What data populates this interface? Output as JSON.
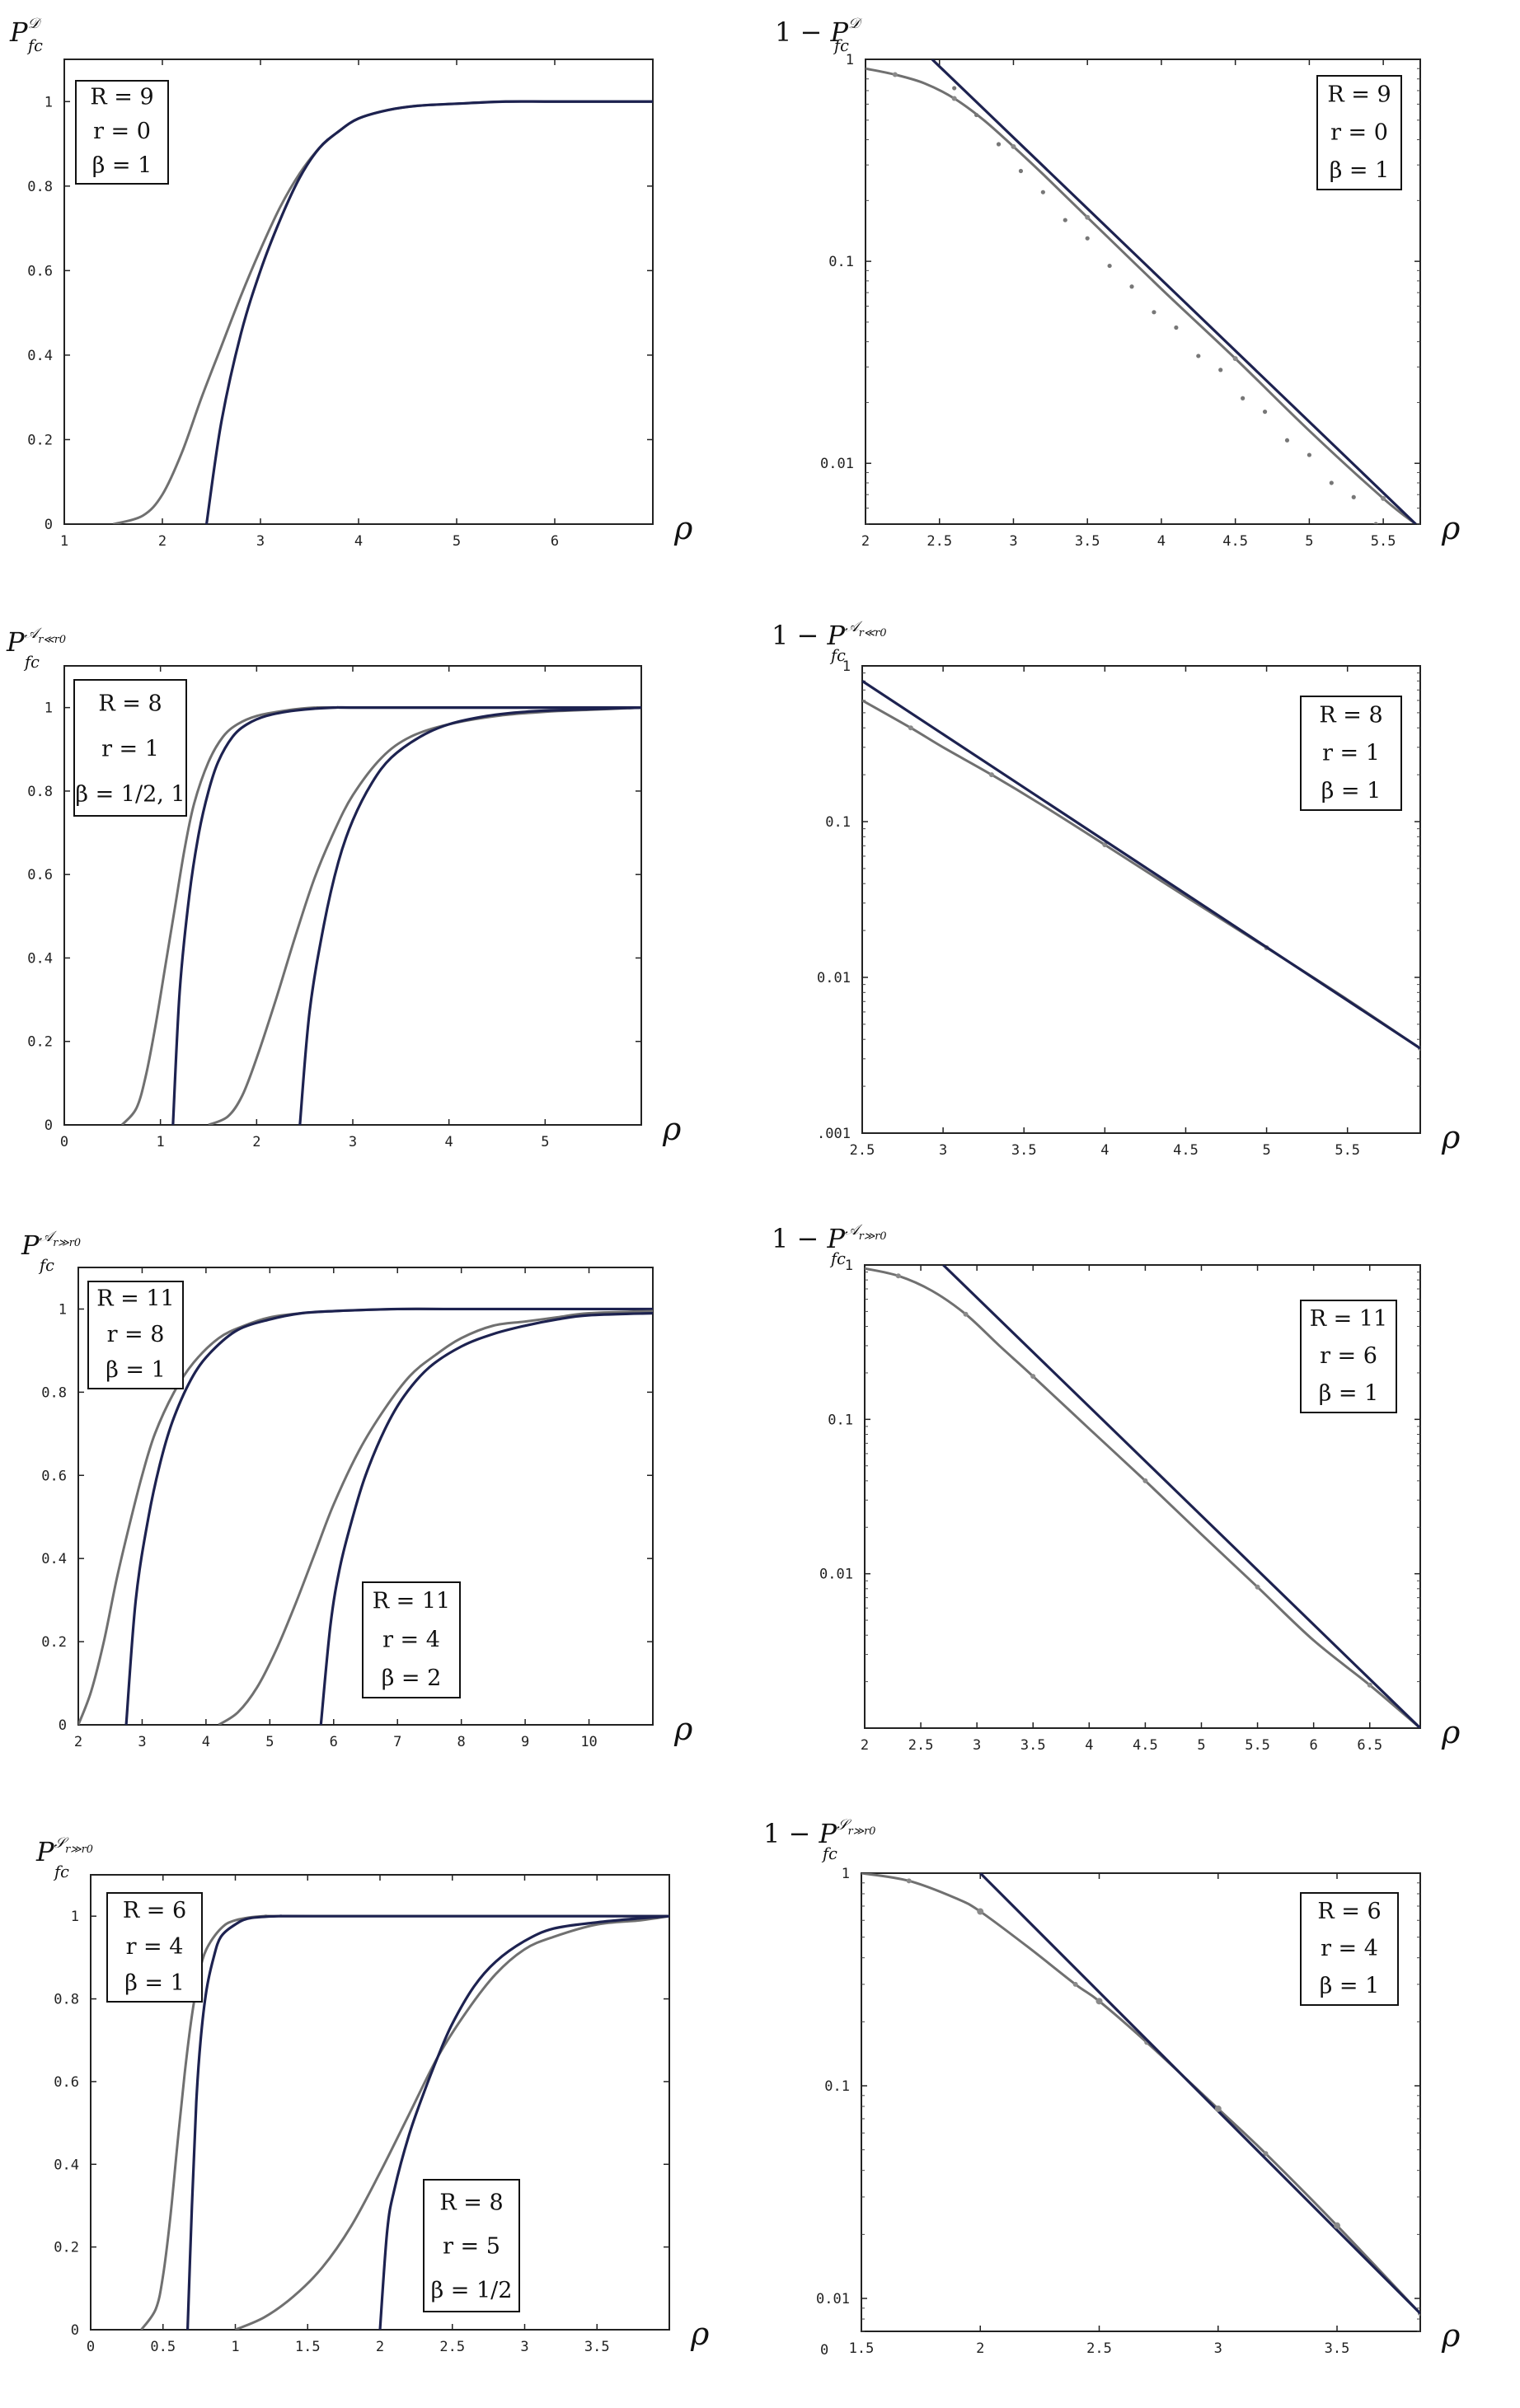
{
  "chart_data": [
    {
      "type": "line",
      "ylabel": "P_fc^D",
      "xlabel": "ρ",
      "xlim": [
        1,
        7
      ],
      "ylim": [
        0,
        1.1
      ],
      "xticks": [
        1,
        2,
        3,
        4,
        5,
        6
      ],
      "yticks": [
        0,
        0.2,
        0.4,
        0.6,
        0.8,
        1
      ],
      "xtick_labels": [
        "1",
        "2",
        "3",
        "4",
        "5",
        "6"
      ],
      "ytick_labels": [
        "0",
        "0.2",
        "0.4",
        "0.6",
        "0.8",
        "1"
      ],
      "annotations": [
        {
          "lines": [
            "R = 9",
            "r = 0",
            "β = 1"
          ]
        }
      ],
      "series": [
        {
          "style": "gray",
          "x": [
            1.5,
            1.8,
            2.0,
            2.2,
            2.4,
            2.6,
            2.8,
            3.0,
            3.2,
            3.4,
            3.6,
            3.8,
            4.0,
            4.3,
            4.6,
            5.0,
            5.5,
            6.0,
            7.0
          ],
          "y": [
            0,
            0.02,
            0.07,
            0.17,
            0.3,
            0.42,
            0.54,
            0.65,
            0.75,
            0.83,
            0.89,
            0.93,
            0.96,
            0.98,
            0.99,
            0.995,
            1,
            1,
            1
          ]
        },
        {
          "style": "dark",
          "x": [
            2.45,
            2.6,
            2.8,
            3.0,
            3.2,
            3.4,
            3.6,
            3.8,
            4.0,
            4.3,
            4.6,
            5.0,
            5.5,
            6.0,
            7.0
          ],
          "y": [
            0,
            0.24,
            0.45,
            0.6,
            0.72,
            0.82,
            0.89,
            0.93,
            0.96,
            0.98,
            0.99,
            0.995,
            1,
            1,
            1
          ]
        }
      ]
    },
    {
      "type": "line",
      "ylabel": "1 − P_fc^D",
      "xlabel": "ρ",
      "xlim": [
        2,
        5.75
      ],
      "ylim": [
        0.005,
        1
      ],
      "yscale": "log",
      "xticks": [
        2,
        2.5,
        3,
        3.5,
        4,
        4.5,
        5,
        5.5
      ],
      "yticks": [
        0.01,
        0.1,
        1
      ],
      "xtick_labels": [
        "2",
        "2.5",
        "3",
        "3.5",
        "4",
        "4.5",
        "5",
        "5.5"
      ],
      "ytick_labels": [
        "0.01",
        "0.1",
        "1"
      ],
      "annotations": [
        {
          "lines": [
            "R = 9",
            "r = 0",
            "β = 1"
          ]
        }
      ],
      "series": [
        {
          "style": "gray",
          "x": [
            2.0,
            2.2,
            2.4,
            2.6,
            2.8,
            3.0,
            3.2,
            3.5,
            4.0,
            4.5,
            5.0,
            5.5,
            5.72
          ],
          "y": [
            0.9,
            0.84,
            0.76,
            0.64,
            0.5,
            0.37,
            0.27,
            0.165,
            0.073,
            0.033,
            0.0145,
            0.0067,
            0.005
          ]
        },
        {
          "style": "dark",
          "x": [
            2.45,
            5.72
          ],
          "y": [
            1.0,
            0.005
          ]
        },
        {
          "style": "dots",
          "x": [
            2.6,
            2.75,
            2.9,
            3.05,
            3.2,
            3.35,
            3.5,
            3.65,
            3.8,
            3.95,
            4.1,
            4.25,
            4.4,
            4.55,
            4.7,
            4.85,
            5.0,
            5.15,
            5.3,
            5.45
          ],
          "y": [
            0.72,
            0.53,
            0.38,
            0.28,
            0.22,
            0.16,
            0.13,
            0.095,
            0.075,
            0.056,
            0.047,
            0.034,
            0.029,
            0.021,
            0.018,
            0.013,
            0.011,
            0.008,
            0.0068,
            0.005
          ]
        }
      ]
    },
    {
      "type": "line",
      "ylabel": "P_fc^{A r≪r0}",
      "xlabel": "ρ",
      "xlim": [
        0,
        6
      ],
      "ylim": [
        0,
        1.1
      ],
      "xticks": [
        0,
        1,
        2,
        3,
        4,
        5
      ],
      "yticks": [
        0,
        0.2,
        0.4,
        0.6,
        0.8,
        1
      ],
      "xtick_labels": [
        "0",
        "1",
        "2",
        "3",
        "4",
        "5"
      ],
      "ytick_labels": [
        "0",
        "0.2",
        "0.4",
        "0.6",
        "0.8",
        "1"
      ],
      "annotations": [
        {
          "lines": [
            "R = 8",
            "r = 1",
            "β = 1/2, 1"
          ]
        }
      ],
      "series": [
        {
          "style": "gray",
          "x": [
            0.6,
            0.75,
            0.85,
            0.95,
            1.05,
            1.15,
            1.25,
            1.35,
            1.5,
            1.65,
            1.8,
            2.0,
            2.3,
            2.6,
            3.0,
            6.0
          ],
          "y": [
            0,
            0.04,
            0.12,
            0.24,
            0.38,
            0.52,
            0.66,
            0.77,
            0.87,
            0.93,
            0.96,
            0.98,
            0.993,
            1,
            1,
            1
          ]
        },
        {
          "style": "dark",
          "x": [
            1.13,
            1.2,
            1.3,
            1.4,
            1.5,
            1.6,
            1.75,
            1.9,
            2.1,
            2.4,
            2.8,
            3.2,
            6.0
          ],
          "y": [
            0,
            0.32,
            0.55,
            0.7,
            0.8,
            0.87,
            0.93,
            0.96,
            0.98,
            0.993,
            1,
            1,
            1
          ]
        },
        {
          "style": "gray",
          "x": [
            1.5,
            1.7,
            1.85,
            2.0,
            2.2,
            2.4,
            2.6,
            2.8,
            3.0,
            3.3,
            3.6,
            4.0,
            4.5,
            5.0,
            5.5,
            6.0
          ],
          "y": [
            0,
            0.02,
            0.07,
            0.16,
            0.3,
            0.45,
            0.59,
            0.7,
            0.79,
            0.88,
            0.93,
            0.96,
            0.98,
            0.99,
            0.995,
            1
          ]
        },
        {
          "style": "dark",
          "x": [
            2.45,
            2.55,
            2.7,
            2.85,
            3.0,
            3.2,
            3.4,
            3.7,
            4.0,
            4.4,
            4.8,
            5.3,
            6.0
          ],
          "y": [
            0,
            0.27,
            0.48,
            0.63,
            0.73,
            0.82,
            0.88,
            0.93,
            0.96,
            0.98,
            0.99,
            0.995,
            1
          ]
        }
      ]
    },
    {
      "type": "line",
      "ylabel": "1 − P_fc^{A r≪r0}",
      "xlabel": "ρ",
      "xlim": [
        2.5,
        5.95
      ],
      "ylim": [
        0.001,
        1
      ],
      "yscale": "log",
      "xticks": [
        2.5,
        3,
        3.5,
        4,
        4.5,
        5,
        5.5
      ],
      "yticks": [
        0.001,
        0.01,
        0.1,
        1
      ],
      "xtick_labels": [
        "2.5",
        "3",
        "3.5",
        "4",
        "4.5",
        "5",
        "5.5"
      ],
      "ytick_labels": [
        ".001",
        "0.01",
        "0.1",
        "1"
      ],
      "annotations": [
        {
          "lines": [
            "R = 8",
            "r = 1",
            "β = 1"
          ]
        }
      ],
      "series": [
        {
          "style": "gray",
          "x": [
            2.5,
            2.8,
            3.0,
            3.3,
            3.6,
            4.0,
            4.5,
            5.0,
            5.5,
            5.95
          ],
          "y": [
            0.6,
            0.4,
            0.3,
            0.2,
            0.13,
            0.071,
            0.033,
            0.0155,
            0.0072,
            0.0035
          ]
        },
        {
          "style": "dark",
          "x": [
            2.5,
            5.95
          ],
          "y": [
            0.8,
            0.0035
          ]
        }
      ]
    },
    {
      "type": "line",
      "ylabel": "P_fc^{A r≫r0}",
      "xlabel": "ρ",
      "xlim": [
        2,
        11
      ],
      "ylim": [
        0,
        1.1
      ],
      "xticks": [
        2,
        3,
        4,
        5,
        6,
        7,
        8,
        9,
        10
      ],
      "yticks": [
        0,
        0.2,
        0.4,
        0.6,
        0.8,
        1
      ],
      "xtick_labels": [
        "2",
        "3",
        "4",
        "5",
        "6",
        "7",
        "8",
        "9",
        "10"
      ],
      "ytick_labels": [
        "0",
        "0.2",
        "0.4",
        "0.6",
        "0.8",
        "1"
      ],
      "annotations": [
        {
          "lines": [
            "R = 11",
            "r = 8",
            "β = 1"
          ]
        },
        {
          "lines": [
            "R = 11",
            "r = 4",
            "β = 2"
          ]
        }
      ],
      "series": [
        {
          "style": "gray",
          "x": [
            2.0,
            2.2,
            2.4,
            2.6,
            2.8,
            3.0,
            3.2,
            3.5,
            3.8,
            4.2,
            4.6,
            5.0,
            5.5,
            6.0,
            7.0,
            8.0,
            11.0
          ],
          "y": [
            0,
            0.08,
            0.2,
            0.35,
            0.48,
            0.6,
            0.7,
            0.8,
            0.87,
            0.93,
            0.96,
            0.98,
            0.99,
            0.995,
            1,
            1,
            1
          ]
        },
        {
          "style": "dark",
          "x": [
            2.75,
            2.9,
            3.1,
            3.3,
            3.5,
            3.8,
            4.1,
            4.5,
            5.0,
            5.5,
            6.0,
            7.0,
            8.0,
            11.0
          ],
          "y": [
            0,
            0.3,
            0.5,
            0.64,
            0.74,
            0.84,
            0.9,
            0.95,
            0.975,
            0.99,
            0.995,
            1,
            1,
            1
          ]
        },
        {
          "style": "gray",
          "x": [
            4.2,
            4.5,
            4.8,
            5.1,
            5.4,
            5.7,
            6.0,
            6.4,
            6.8,
            7.2,
            7.6,
            8.0,
            8.5,
            9.0,
            9.5,
            10.0,
            11.0
          ],
          "y": [
            0,
            0.03,
            0.09,
            0.18,
            0.29,
            0.41,
            0.53,
            0.66,
            0.76,
            0.84,
            0.89,
            0.93,
            0.96,
            0.97,
            0.98,
            0.99,
            0.995
          ]
        },
        {
          "style": "dark",
          "x": [
            5.8,
            5.95,
            6.1,
            6.3,
            6.5,
            6.8,
            7.1,
            7.5,
            8.0,
            8.5,
            9.0,
            9.5,
            10.0,
            11.0
          ],
          "y": [
            0,
            0.24,
            0.38,
            0.5,
            0.6,
            0.71,
            0.79,
            0.86,
            0.91,
            0.94,
            0.96,
            0.975,
            0.985,
            0.99
          ]
        }
      ]
    },
    {
      "type": "line",
      "ylabel": "1 − P_fc^{A r≫r0}",
      "xlabel": "ρ",
      "xlim": [
        2,
        6.95
      ],
      "ylim": [
        0.001,
        1
      ],
      "yscale": "log",
      "xticks": [
        2,
        2.5,
        3,
        3.5,
        4,
        4.5,
        5,
        5.5,
        6,
        6.5
      ],
      "yticks": [
        0.01,
        0.1,
        1
      ],
      "xtick_labels": [
        "2",
        "2.5",
        "3",
        "3.5",
        "4",
        "4.5",
        "5",
        "5.5",
        "6",
        "6.5"
      ],
      "ytick_labels": [
        "0.01",
        "0.1",
        "1"
      ],
      "annotations": [
        {
          "lines": [
            "R = 11",
            "r = 6",
            "β = 1"
          ]
        }
      ],
      "series": [
        {
          "style": "gray",
          "x": [
            2.0,
            2.3,
            2.6,
            2.9,
            3.2,
            3.5,
            4.0,
            4.5,
            5.0,
            5.5,
            6.0,
            6.5,
            6.95
          ],
          "y": [
            0.95,
            0.85,
            0.68,
            0.48,
            0.3,
            0.19,
            0.087,
            0.04,
            0.018,
            0.0082,
            0.0037,
            0.0019,
            0.001
          ]
        },
        {
          "style": "dark",
          "x": [
            2.7,
            6.95
          ],
          "y": [
            1.0,
            0.001
          ]
        }
      ]
    },
    {
      "type": "line",
      "ylabel": "P_fc^{S r≫r0}",
      "xlabel": "ρ",
      "xlim": [
        0,
        4
      ],
      "ylim": [
        0,
        1.1
      ],
      "xticks": [
        0,
        0.5,
        1,
        1.5,
        2,
        2.5,
        3,
        3.5
      ],
      "yticks": [
        0,
        0.2,
        0.4,
        0.6,
        0.8,
        1
      ],
      "xtick_labels": [
        "0",
        "0.5",
        "1",
        "1.5",
        "2",
        "2.5",
        "3",
        "3.5"
      ],
      "ytick_labels": [
        "0",
        "0.2",
        "0.4",
        "0.6",
        "0.8",
        "1"
      ],
      "annotations": [
        {
          "lines": [
            "R = 6",
            "r = 4",
            "β = 1"
          ]
        },
        {
          "lines": [
            "R = 8",
            "r = 5",
            "β = 1/2"
          ]
        }
      ],
      "series": [
        {
          "style": "gray",
          "x": [
            0.35,
            0.45,
            0.5,
            0.55,
            0.6,
            0.65,
            0.7,
            0.75,
            0.8,
            0.9,
            1.0,
            1.2,
            1.5,
            4.0
          ],
          "y": [
            0,
            0.05,
            0.13,
            0.27,
            0.45,
            0.62,
            0.76,
            0.86,
            0.92,
            0.97,
            0.99,
            1,
            1,
            1
          ]
        },
        {
          "style": "dark",
          "x": [
            0.67,
            0.7,
            0.73,
            0.76,
            0.8,
            0.85,
            0.9,
            1.0,
            1.1,
            1.3,
            1.6,
            4.0
          ],
          "y": [
            0,
            0.3,
            0.55,
            0.7,
            0.82,
            0.9,
            0.95,
            0.98,
            0.995,
            1,
            1,
            1
          ]
        },
        {
          "style": "gray",
          "x": [
            1.0,
            1.2,
            1.4,
            1.6,
            1.8,
            2.0,
            2.2,
            2.4,
            2.6,
            2.8,
            3.0,
            3.2,
            3.5,
            3.8,
            4.0
          ],
          "y": [
            0,
            0.03,
            0.08,
            0.15,
            0.25,
            0.38,
            0.52,
            0.66,
            0.77,
            0.86,
            0.92,
            0.95,
            0.98,
            0.99,
            1
          ]
        },
        {
          "style": "dark",
          "x": [
            2.0,
            2.05,
            2.1,
            2.2,
            2.3,
            2.4,
            2.5,
            2.65,
            2.8,
            3.0,
            3.2,
            3.5,
            3.8,
            4.0
          ],
          "y": [
            0,
            0.24,
            0.34,
            0.47,
            0.57,
            0.66,
            0.74,
            0.83,
            0.89,
            0.94,
            0.97,
            0.985,
            0.995,
            1
          ]
        }
      ]
    },
    {
      "type": "line",
      "ylabel": "1 − P_fc^{S r≫r0}",
      "xlabel": "ρ",
      "xlim": [
        1.5,
        3.85
      ],
      "ylim": [
        0.007,
        1
      ],
      "yscale": "log",
      "xticks": [
        1.5,
        2,
        2.5,
        3,
        3.5
      ],
      "yticks": [
        0.01,
        0.1,
        1
      ],
      "xtick_labels": [
        "1.5",
        "2",
        "2.5",
        "3",
        "3.5"
      ],
      "ytick_labels": [
        "0.01",
        "0.1",
        "1"
      ],
      "annotations": [
        {
          "lines": [
            "R = 6",
            "r = 4",
            "β = 1"
          ]
        }
      ],
      "series": [
        {
          "style": "gray",
          "x": [
            1.5,
            1.7,
            1.9,
            2.0,
            2.2,
            2.4,
            2.5,
            2.7,
            3.0,
            3.2,
            3.5,
            3.85
          ],
          "y": [
            1.0,
            0.92,
            0.76,
            0.66,
            0.45,
            0.3,
            0.25,
            0.16,
            0.078,
            0.048,
            0.022,
            0.0085
          ]
        },
        {
          "style": "dark",
          "x": [
            2.0,
            3.85
          ],
          "y": [
            1.0,
            0.0085
          ]
        },
        {
          "style": "marks",
          "x": [
            2.0,
            2.5,
            3.0,
            3.5
          ],
          "y": [
            0.66,
            0.25,
            0.078,
            0.022
          ]
        }
      ],
      "corner_label": "0"
    }
  ]
}
